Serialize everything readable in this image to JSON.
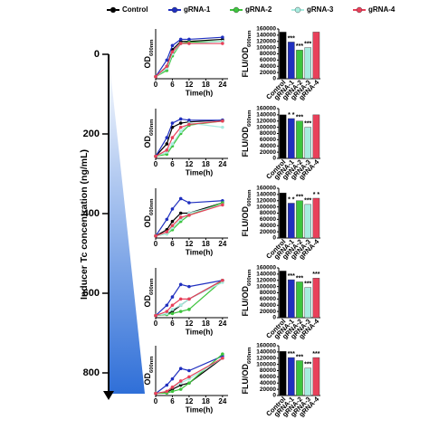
{
  "legend": [
    {
      "name": "Control",
      "color": "#000000"
    },
    {
      "name": "gRNA-1",
      "color": "#1f2fbf"
    },
    {
      "name": "gRNA-2",
      "color": "#3ec43e"
    },
    {
      "name": "gRNA-3",
      "color": "#a8ece0"
    },
    {
      "name": "gRNA-4",
      "color": "#e8405a"
    }
  ],
  "concentration_axis": {
    "label": "Inducer Tc concentration (ng/mL)",
    "ylim": [
      0,
      850
    ],
    "yticks": [
      0,
      200,
      400,
      600,
      800
    ]
  },
  "chart_data": [
    {
      "type": "line",
      "xlabel": "Time(h)",
      "ylabel": "OD",
      "ylabel_sub": "600nm",
      "x": [
        0,
        4,
        6,
        9,
        12,
        24
      ],
      "xlim": [
        0,
        26
      ],
      "xticks": [
        0,
        6,
        12,
        18,
        24
      ],
      "ylim": [
        0,
        1.2
      ],
      "series": [
        {
          "color": "#000000",
          "values": [
            0.05,
            0.3,
            0.7,
            0.9,
            0.9,
            0.95
          ]
        },
        {
          "color": "#1f2fbf",
          "values": [
            0.05,
            0.45,
            0.8,
            0.95,
            0.95,
            1.0
          ]
        },
        {
          "color": "#3ec43e",
          "values": [
            0.05,
            0.2,
            0.55,
            0.85,
            0.88,
            0.9
          ]
        },
        {
          "color": "#a8ece0",
          "values": [
            0.05,
            0.25,
            0.6,
            0.85,
            0.85,
            0.9
          ]
        },
        {
          "color": "#e8405a",
          "values": [
            0.05,
            0.3,
            0.65,
            0.85,
            0.85,
            0.85
          ]
        }
      ]
    },
    {
      "type": "bar",
      "ylabel": "FLU/OD",
      "ylabel_sub": "600nm",
      "categories": [
        "Control",
        "gRNA-1",
        "gRNA-2",
        "gRNA-3",
        "gRNA-4"
      ],
      "values": [
        150000,
        118000,
        92000,
        100000,
        150000
      ],
      "significance": [
        null,
        "***",
        "***",
        "***",
        null
      ],
      "colors": [
        "#000000",
        "#1f2fbf",
        "#3ec43e",
        "#a8ece0",
        "#e8405a"
      ],
      "ylim": [
        0,
        160000
      ],
      "yticks": [
        0,
        20000,
        40000,
        60000,
        80000,
        100000,
        120000,
        140000,
        160000
      ]
    },
    {
      "type": "line",
      "xlabel": "Time(h)",
      "ylabel": "OD",
      "ylabel_sub": "600nm",
      "x": [
        0,
        4,
        6,
        9,
        12,
        24
      ],
      "xlim": [
        0,
        26
      ],
      "xticks": [
        0,
        6,
        12,
        18,
        24
      ],
      "ylim": [
        0,
        1.2
      ],
      "series": [
        {
          "color": "#000000",
          "values": [
            0.05,
            0.35,
            0.75,
            0.85,
            0.88,
            0.92
          ]
        },
        {
          "color": "#1f2fbf",
          "values": [
            0.05,
            0.5,
            0.85,
            0.95,
            0.92,
            0.92
          ]
        },
        {
          "color": "#3ec43e",
          "values": [
            0.05,
            0.1,
            0.3,
            0.6,
            0.8,
            0.9
          ]
        },
        {
          "color": "#a8ece0",
          "values": [
            0.05,
            0.15,
            0.35,
            0.65,
            0.85,
            0.75
          ]
        },
        {
          "color": "#e8405a",
          "values": [
            0.05,
            0.2,
            0.5,
            0.75,
            0.82,
            0.9
          ]
        }
      ]
    },
    {
      "type": "bar",
      "ylabel": "FLU/OD",
      "ylabel_sub": "600nm",
      "categories": [
        "Control",
        "gRNA-1",
        "gRNA-2",
        "gRNA-3",
        "gRNA-4"
      ],
      "values": [
        140000,
        128000,
        120000,
        100000,
        140000
      ],
      "significance": [
        null,
        "* *",
        "***",
        "***",
        null
      ],
      "colors": [
        "#000000",
        "#1f2fbf",
        "#3ec43e",
        "#a8ece0",
        "#e8405a"
      ],
      "ylim": [
        0,
        160000
      ],
      "yticks": [
        0,
        20000,
        40000,
        60000,
        80000,
        100000,
        120000,
        140000,
        160000
      ]
    },
    {
      "type": "line",
      "xlabel": "Time(h)",
      "ylabel": "OD",
      "ylabel_sub": "600nm",
      "x": [
        0,
        4,
        6,
        9,
        12,
        24
      ],
      "xlim": [
        0,
        26
      ],
      "xticks": [
        0,
        6,
        12,
        18,
        24
      ],
      "ylim": [
        0,
        1.2
      ],
      "series": [
        {
          "color": "#000000",
          "values": [
            0.05,
            0.2,
            0.4,
            0.6,
            0.6,
            0.85
          ]
        },
        {
          "color": "#1f2fbf",
          "values": [
            0.05,
            0.45,
            0.7,
            0.95,
            0.85,
            0.9
          ]
        },
        {
          "color": "#3ec43e",
          "values": [
            0.05,
            0.1,
            0.2,
            0.4,
            0.55,
            0.85
          ]
        },
        {
          "color": "#a8ece0",
          "values": [
            0.05,
            0.1,
            0.25,
            0.45,
            0.6,
            0.8
          ]
        },
        {
          "color": "#e8405a",
          "values": [
            0.05,
            0.15,
            0.3,
            0.5,
            0.55,
            0.8
          ]
        }
      ]
    },
    {
      "type": "bar",
      "ylabel": "FLU/OD",
      "ylabel_sub": "600nm",
      "categories": [
        "Control",
        "gRNA-1",
        "gRNA-2",
        "gRNA-3",
        "gRNA-4"
      ],
      "values": [
        145000,
        112000,
        120000,
        108000,
        128000
      ],
      "significance": [
        null,
        "* *",
        "***",
        "***",
        "* *"
      ],
      "colors": [
        "#000000",
        "#1f2fbf",
        "#3ec43e",
        "#a8ece0",
        "#e8405a"
      ],
      "ylim": [
        0,
        160000
      ],
      "yticks": [
        0,
        20000,
        40000,
        60000,
        80000,
        100000,
        120000,
        140000,
        160000
      ]
    },
    {
      "type": "line",
      "xlabel": "Time(h)",
      "ylabel": "OD",
      "ylabel_sub": "600nm",
      "x": [
        0,
        4,
        6,
        9,
        12,
        24
      ],
      "xlim": [
        0,
        26
      ],
      "xticks": [
        0,
        6,
        12,
        18,
        24
      ],
      "ylim": [
        0,
        1.2
      ],
      "series": [
        {
          "color": "#000000",
          "values": [
            0.05,
            0.08,
            0.15,
            0.3,
            0.45,
            0.9
          ]
        },
        {
          "color": "#1f2fbf",
          "values": [
            0.05,
            0.3,
            0.5,
            0.8,
            0.75,
            0.9
          ]
        },
        {
          "color": "#3ec43e",
          "values": [
            0.05,
            0.08,
            0.1,
            0.15,
            0.2,
            0.9
          ]
        },
        {
          "color": "#a8ece0",
          "values": [
            0.05,
            0.1,
            0.2,
            0.3,
            0.45,
            0.85
          ]
        },
        {
          "color": "#e8405a",
          "values": [
            0.05,
            0.15,
            0.3,
            0.45,
            0.45,
            0.9
          ]
        }
      ]
    },
    {
      "type": "bar",
      "ylabel": "FLU/OD",
      "ylabel_sub": "600nm",
      "categories": [
        "Control",
        "gRNA-1",
        "gRNA-2",
        "gRNA-3",
        "gRNA-4"
      ],
      "values": [
        150000,
        122000,
        115000,
        97000,
        127000
      ],
      "significance": [
        null,
        "***",
        "***",
        "***",
        "***"
      ],
      "colors": [
        "#000000",
        "#1f2fbf",
        "#3ec43e",
        "#a8ece0",
        "#e8405a"
      ],
      "ylim": [
        0,
        160000
      ],
      "yticks": [
        0,
        20000,
        40000,
        60000,
        80000,
        100000,
        120000,
        140000,
        160000
      ]
    },
    {
      "type": "line",
      "xlabel": "Time(h)",
      "ylabel": "OD",
      "ylabel_sub": "600nm",
      "x": [
        0,
        4,
        6,
        9,
        12,
        24
      ],
      "xlim": [
        0,
        26
      ],
      "xticks": [
        0,
        6,
        12,
        18,
        24
      ],
      "ylim": [
        0,
        1.2
      ],
      "series": [
        {
          "color": "#000000",
          "values": [
            0.05,
            0.08,
            0.15,
            0.25,
            0.3,
            0.9
          ]
        },
        {
          "color": "#1f2fbf",
          "values": [
            0.05,
            0.25,
            0.4,
            0.65,
            0.6,
            0.95
          ]
        },
        {
          "color": "#3ec43e",
          "values": [
            0.05,
            0.06,
            0.1,
            0.15,
            0.3,
            1.0
          ]
        },
        {
          "color": "#a8ece0",
          "values": [
            0.05,
            0.1,
            0.2,
            0.3,
            0.4,
            0.9
          ]
        },
        {
          "color": "#e8405a",
          "values": [
            0.05,
            0.1,
            0.2,
            0.35,
            0.45,
            0.9
          ]
        }
      ]
    },
    {
      "type": "bar",
      "ylabel": "FLU/OD",
      "ylabel_sub": "600nm",
      "categories": [
        "Control",
        "gRNA-1",
        "gRNA-2",
        "gRNA-3",
        "gRNA-4"
      ],
      "values": [
        142000,
        122000,
        112000,
        88000,
        122000
      ],
      "significance": [
        null,
        "***",
        "***",
        "***",
        "***"
      ],
      "colors": [
        "#000000",
        "#1f2fbf",
        "#3ec43e",
        "#a8ece0",
        "#e8405a"
      ],
      "ylim": [
        0,
        160000
      ],
      "yticks": [
        0,
        20000,
        40000,
        60000,
        80000,
        100000,
        120000,
        140000,
        160000
      ]
    }
  ]
}
